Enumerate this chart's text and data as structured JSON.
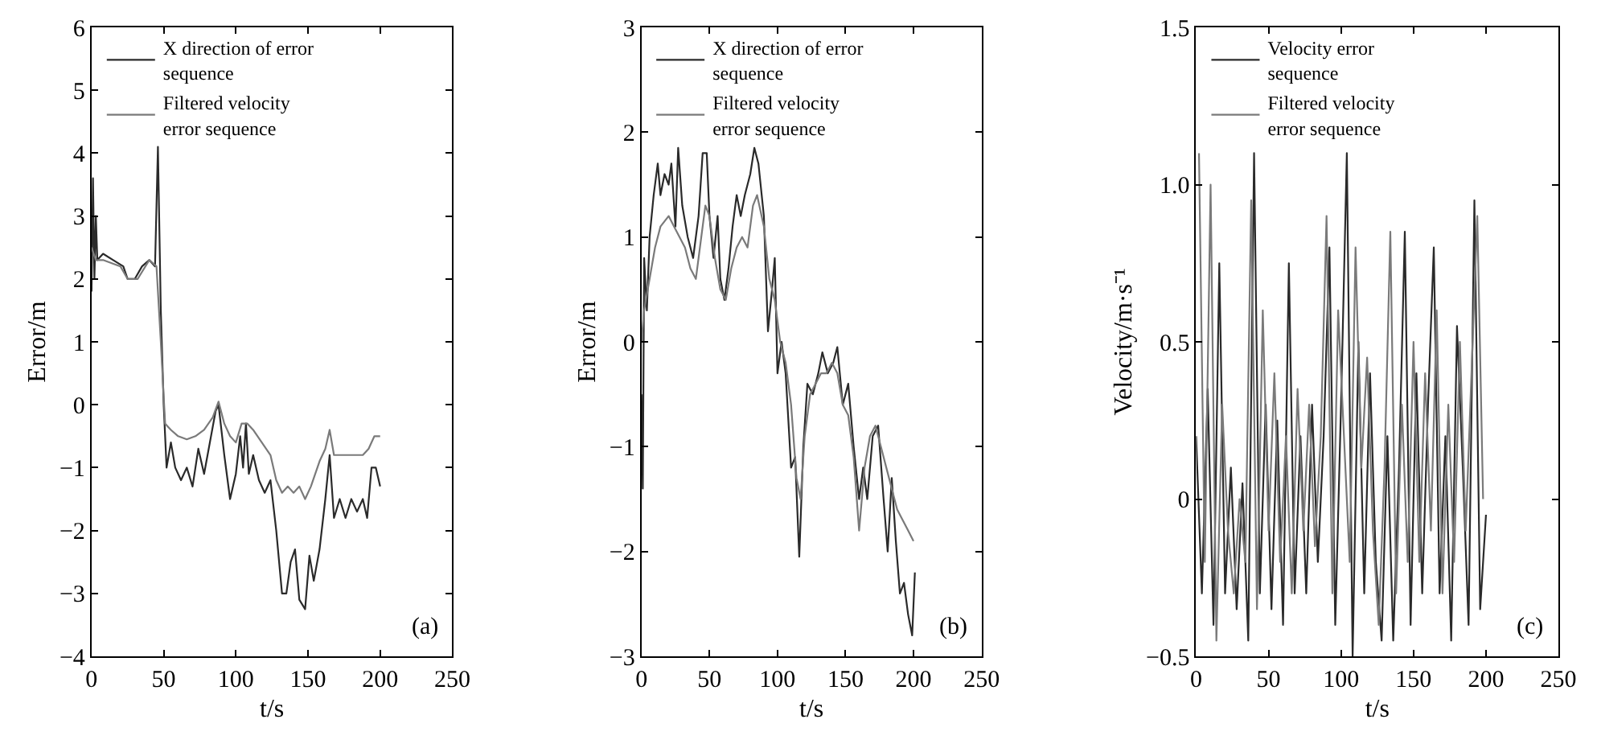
{
  "chart_data": [
    {
      "type": "line",
      "xlabel": "t/s",
      "ylabel": "Error/m",
      "xlim": [
        0,
        250
      ],
      "xticks": [
        0,
        50,
        100,
        150,
        200,
        250
      ],
      "ylim": [
        -4,
        6
      ],
      "yticks": [
        -4,
        -3,
        -2,
        -1,
        0,
        1,
        2,
        3,
        4,
        5,
        6
      ],
      "legend": "top left",
      "annotations": [
        "(a)"
      ],
      "series": [
        {
          "name": "X direction of error sequence",
          "color": "#2a2a2a",
          "x": [
            0,
            1,
            2,
            3,
            4,
            8,
            15,
            22,
            25,
            30,
            35,
            40,
            44,
            46,
            48,
            50,
            52,
            55,
            58,
            62,
            66,
            70,
            74,
            78,
            82,
            86,
            88,
            92,
            96,
            100,
            103,
            105,
            107,
            109,
            112,
            116,
            120,
            124,
            128,
            132,
            135,
            138,
            141,
            144,
            148,
            151,
            154,
            158,
            162,
            165,
            168,
            172,
            176,
            180,
            184,
            188,
            191,
            194,
            197,
            200
          ],
          "values": [
            1.8,
            3.6,
            2.0,
            3.0,
            2.3,
            2.4,
            2.3,
            2.2,
            2.0,
            2.0,
            2.2,
            2.3,
            2.2,
            4.1,
            1.5,
            0,
            -1.0,
            -0.6,
            -1.0,
            -1.2,
            -1.0,
            -1.3,
            -0.7,
            -1.1,
            -0.6,
            -0.1,
            0.0,
            -0.8,
            -1.5,
            -1.1,
            -0.5,
            -1.0,
            -0.3,
            -1.1,
            -0.8,
            -1.2,
            -1.4,
            -1.2,
            -2.0,
            -3.0,
            -3.0,
            -2.5,
            -2.3,
            -3.1,
            -3.25,
            -2.4,
            -2.8,
            -2.3,
            -1.5,
            -0.8,
            -1.8,
            -1.5,
            -1.8,
            -1.5,
            -1.7,
            -1.5,
            -1.8,
            -1.0,
            -1.0,
            -1.3
          ]
        },
        {
          "name": "Filtered velocity error sequence",
          "color": "#7a7a7a",
          "x": [
            0,
            3,
            8,
            20,
            25,
            32,
            40,
            45,
            48,
            51,
            55,
            60,
            66,
            72,
            78,
            84,
            88,
            92,
            96,
            100,
            104,
            108,
            112,
            118,
            124,
            128,
            132,
            136,
            140,
            144,
            148,
            152,
            158,
            162,
            165,
            168,
            175,
            182,
            188,
            192,
            196,
            200
          ],
          "values": [
            2.5,
            2.3,
            2.3,
            2.2,
            2.0,
            2.0,
            2.3,
            2.2,
            1.0,
            -0.3,
            -0.4,
            -0.5,
            -0.55,
            -0.5,
            -0.4,
            -0.2,
            0.05,
            -0.3,
            -0.5,
            -0.6,
            -0.3,
            -0.3,
            -0.4,
            -0.6,
            -0.8,
            -1.2,
            -1.4,
            -1.3,
            -1.4,
            -1.3,
            -1.5,
            -1.3,
            -0.9,
            -0.7,
            -0.4,
            -0.8,
            -0.8,
            -0.8,
            -0.8,
            -0.7,
            -0.5,
            -0.5
          ]
        }
      ]
    },
    {
      "type": "line",
      "xlabel": "t/s",
      "ylabel": "Error/m",
      "xlim": [
        0,
        250
      ],
      "xticks": [
        0,
        50,
        100,
        150,
        200,
        250
      ],
      "ylim": [
        -3,
        3
      ],
      "yticks": [
        -3,
        -2,
        -1,
        0,
        1,
        2,
        3
      ],
      "legend": "top left",
      "annotations": [
        "(b)"
      ],
      "series": [
        {
          "name": "X direction of error sequence",
          "color": "#2a2a2a",
          "x": [
            0,
            1,
            2,
            4,
            6,
            9,
            12,
            14,
            17,
            20,
            22,
            25,
            27,
            30,
            34,
            38,
            42,
            45,
            48,
            50,
            53,
            56,
            58,
            61,
            64,
            67,
            70,
            73,
            76,
            80,
            83,
            86,
            90,
            93,
            96,
            98,
            100,
            103,
            106,
            110,
            113,
            116,
            119,
            122,
            126,
            130,
            133,
            137,
            141,
            144,
            148,
            152,
            156,
            160,
            163,
            166,
            170,
            174,
            178,
            181,
            184,
            187,
            190,
            193,
            196,
            199,
            201
          ],
          "values": [
            -0.5,
            -1.4,
            0.8,
            0.3,
            1.0,
            1.4,
            1.7,
            1.4,
            1.6,
            1.5,
            1.7,
            1.1,
            1.85,
            1.3,
            1.0,
            0.8,
            1.2,
            1.8,
            1.8,
            1.2,
            0.8,
            1.2,
            0.6,
            0.4,
            0.7,
            1.1,
            1.4,
            1.2,
            1.4,
            1.6,
            1.85,
            1.7,
            1.2,
            0.1,
            0.5,
            0.8,
            -0.3,
            0.0,
            -0.3,
            -1.2,
            -1.1,
            -2.05,
            -1.0,
            -0.4,
            -0.5,
            -0.3,
            -0.1,
            -0.3,
            -0.2,
            -0.05,
            -0.6,
            -0.4,
            -1.0,
            -1.5,
            -1.2,
            -1.5,
            -0.9,
            -0.8,
            -1.5,
            -2.0,
            -1.3,
            -1.9,
            -2.4,
            -2.3,
            -2.6,
            -2.8,
            -2.2
          ]
        },
        {
          "name": "Filtered velocity error sequence",
          "color": "#7a7a7a",
          "x": [
            0,
            2,
            6,
            10,
            14,
            20,
            24,
            28,
            32,
            36,
            40,
            44,
            47,
            50,
            54,
            58,
            62,
            66,
            70,
            74,
            78,
            82,
            85,
            90,
            94,
            98,
            102,
            106,
            110,
            114,
            117,
            120,
            124,
            128,
            132,
            136,
            140,
            144,
            148,
            152,
            156,
            160,
            164,
            168,
            172,
            176,
            180,
            184,
            188,
            192,
            196,
            200
          ],
          "values": [
            0,
            0.3,
            0.6,
            0.9,
            1.1,
            1.2,
            1.1,
            1.0,
            0.9,
            0.7,
            0.6,
            1.0,
            1.3,
            1.2,
            0.8,
            0.5,
            0.4,
            0.7,
            0.9,
            1.0,
            0.9,
            1.3,
            1.4,
            1.1,
            0.6,
            0.4,
            0.0,
            -0.2,
            -0.6,
            -1.3,
            -1.5,
            -0.9,
            -0.5,
            -0.4,
            -0.3,
            -0.3,
            -0.2,
            -0.3,
            -0.6,
            -0.7,
            -1.1,
            -1.8,
            -1.2,
            -0.9,
            -0.8,
            -1.0,
            -1.2,
            -1.4,
            -1.6,
            -1.7,
            -1.8,
            -1.9
          ]
        }
      ]
    },
    {
      "type": "line",
      "xlabel": "t/s",
      "ylabel": "Velocity/m·s⁻¹",
      "xlim": [
        0,
        250
      ],
      "xticks": [
        0,
        50,
        100,
        150,
        200,
        250
      ],
      "ylim": [
        -0.5,
        1.5
      ],
      "yticks": [
        -0.5,
        0,
        0.5,
        {
          "value": 1,
          "label": "1.0"
        },
        1.5
      ],
      "legend": "top left",
      "annotations": [
        "(c)"
      ],
      "series": [
        {
          "name": "Velocity error sequence",
          "color": "#2a2a2a",
          "x": [
            0,
            4,
            8,
            12,
            16,
            20,
            24,
            28,
            32,
            36,
            40,
            44,
            48,
            52,
            56,
            60,
            64,
            68,
            72,
            76,
            80,
            84,
            88,
            92,
            96,
            100,
            104,
            108,
            112,
            116,
            120,
            124,
            128,
            132,
            136,
            140,
            144,
            148,
            152,
            156,
            160,
            164,
            168,
            172,
            176,
            180,
            184,
            188,
            192,
            196,
            200
          ],
          "values": [
            0.2,
            -0.3,
            0.35,
            -0.4,
            0.75,
            -0.3,
            0.1,
            -0.35,
            0.05,
            -0.45,
            1.1,
            -0.3,
            0.3,
            -0.35,
            0.25,
            -0.4,
            0.75,
            -0.3,
            0.2,
            -0.3,
            0.3,
            -0.2,
            0.2,
            0.8,
            -0.4,
            0.3,
            1.1,
            -0.5,
            0.5,
            -0.3,
            0.4,
            -0.2,
            -0.45,
            0.2,
            -0.45,
            0.1,
            0.85,
            -0.4,
            0.4,
            -0.3,
            0.3,
            0.8,
            -0.3,
            0.2,
            -0.45,
            0.55,
            0.1,
            -0.4,
            0.95,
            -0.35,
            -0.05
          ]
        },
        {
          "name": "Filtered velocity error sequence",
          "color": "#7a7a7a",
          "x": [
            2,
            6,
            10,
            14,
            18,
            22,
            26,
            30,
            34,
            38,
            42,
            46,
            50,
            54,
            58,
            62,
            66,
            70,
            74,
            78,
            82,
            86,
            90,
            94,
            98,
            102,
            106,
            110,
            114,
            118,
            122,
            126,
            130,
            134,
            138,
            142,
            146,
            150,
            154,
            158,
            162,
            166,
            170,
            174,
            178,
            182,
            186,
            190,
            194,
            198
          ],
          "values": [
            1.1,
            -0.2,
            1.0,
            -0.45,
            0.3,
            -0.1,
            -0.3,
            0.0,
            -0.2,
            0.95,
            -0.35,
            0.6,
            -0.1,
            0.4,
            -0.2,
            0.2,
            -0.3,
            0.35,
            -0.1,
            0.3,
            -0.15,
            0.2,
            0.9,
            -0.3,
            0.6,
            0.2,
            -0.2,
            0.8,
            0.1,
            0.45,
            -0.1,
            -0.4,
            0.1,
            0.85,
            -0.3,
            0.3,
            -0.2,
            0.5,
            -0.2,
            0.4,
            -0.1,
            0.6,
            -0.3,
            0.3,
            -0.2,
            0.5,
            -0.1,
            0.4,
            0.9,
            0.0
          ]
        }
      ]
    }
  ]
}
